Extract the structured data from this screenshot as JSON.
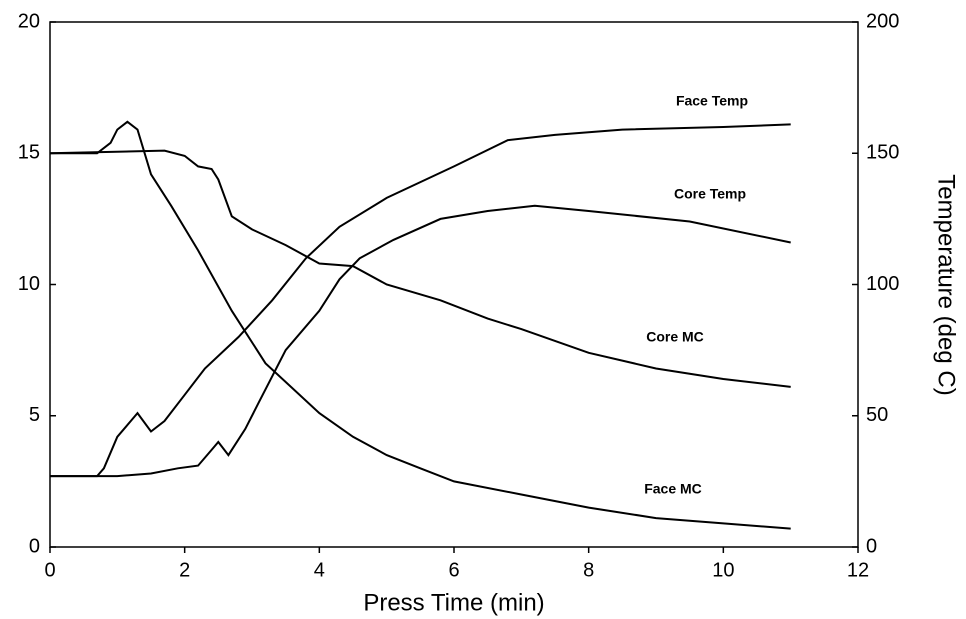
{
  "chart_data": {
    "type": "line",
    "xlabel": "Press Time (min)",
    "y2label": "Temperature (deg C)",
    "xlim": [
      0,
      12
    ],
    "xticks": [
      0,
      2,
      4,
      6,
      8,
      10,
      12
    ],
    "ylim": [
      0,
      20
    ],
    "yticks": [
      0,
      5,
      10,
      15,
      20
    ],
    "y2lim": [
      0,
      200
    ],
    "y2ticks": [
      0,
      50,
      100,
      150,
      200
    ],
    "grid": false,
    "series": [
      {
        "name": "Face Temp",
        "color": "#000000",
        "axis": "y2",
        "x": [
          0,
          0.7,
          0.8,
          1.0,
          1.2,
          1.3,
          1.5,
          1.7,
          2.0,
          2.3,
          2.8,
          3.3,
          3.8,
          4.3,
          5.0,
          6.0,
          6.8,
          7.5,
          8.5,
          10,
          11
        ],
        "values": [
          27,
          27,
          30,
          42,
          48,
          51,
          44,
          48,
          58,
          68,
          80,
          94,
          110,
          122,
          133,
          145,
          155,
          157,
          159,
          160,
          161
        ]
      },
      {
        "name": "Core Temp",
        "color": "#000000",
        "axis": "y2",
        "x": [
          0,
          1.0,
          1.5,
          1.9,
          2.2,
          2.4,
          2.5,
          2.65,
          2.9,
          3.1,
          3.5,
          4.0,
          4.3,
          4.6,
          5.1,
          5.8,
          6.5,
          7.2,
          8.0,
          9.5,
          11
        ],
        "values": [
          27,
          27,
          28,
          30,
          31,
          37,
          40,
          35,
          45,
          55,
          75,
          90,
          102,
          110,
          117,
          125,
          128,
          130,
          128,
          124,
          116
        ]
      },
      {
        "name": "Core MC",
        "color": "#000000",
        "x": [
          0,
          1.7,
          2.0,
          2.2,
          2.4,
          2.5,
          2.7,
          3.0,
          3.5,
          4.0,
          4.5,
          5.0,
          5.8,
          6.5,
          7.0,
          8.0,
          9.0,
          10,
          11
        ],
        "values": [
          15,
          15.1,
          14.9,
          14.5,
          14.4,
          14,
          12.6,
          12.1,
          11.5,
          10.8,
          10.7,
          10,
          9.4,
          8.7,
          8.3,
          7.4,
          6.8,
          6.4,
          6.1
        ]
      },
      {
        "name": "Face MC",
        "color": "#000000",
        "x": [
          0,
          0.7,
          0.9,
          1.0,
          1.15,
          1.3,
          1.5,
          1.8,
          2.2,
          2.7,
          3.2,
          4.0,
          4.5,
          5.0,
          5.5,
          6.0,
          7.0,
          8.0,
          9.0,
          10,
          11
        ],
        "values": [
          15,
          15,
          15.4,
          15.9,
          16.2,
          15.9,
          14.2,
          13,
          11.3,
          9,
          7,
          5.1,
          4.2,
          3.5,
          3.0,
          2.5,
          2.0,
          1.5,
          1.1,
          0.9,
          0.7
        ]
      }
    ]
  }
}
